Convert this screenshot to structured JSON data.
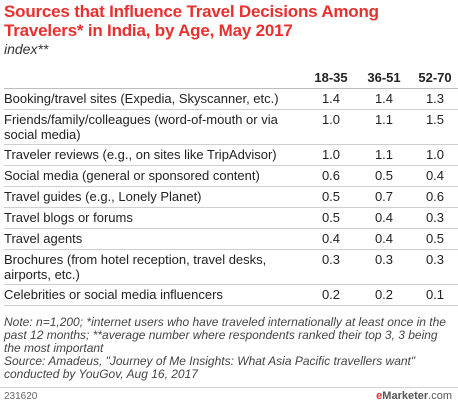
{
  "header": {
    "title": "Sources that Influence Travel Decisions Among Travelers* in India, by Age, May 2017",
    "subtitle": "index**"
  },
  "chart_data": {
    "type": "table",
    "columns": [
      "18-35",
      "36-51",
      "52-70"
    ],
    "rows": [
      {
        "label": "Booking/travel sites (Expedia, Skyscanner, etc.)",
        "values": [
          "1.4",
          "1.4",
          "1.3"
        ]
      },
      {
        "label": "Friends/family/colleagues (word-of-mouth or via social media)",
        "values": [
          "1.0",
          "1.1",
          "1.5"
        ]
      },
      {
        "label": "Traveler reviews (e.g., on sites like TripAdvisor)",
        "values": [
          "1.0",
          "1.1",
          "1.0"
        ]
      },
      {
        "label": "Social media (general or sponsored content)",
        "values": [
          "0.6",
          "0.5",
          "0.4"
        ]
      },
      {
        "label": "Travel guides (e.g., Lonely Planet)",
        "values": [
          "0.5",
          "0.7",
          "0.6"
        ]
      },
      {
        "label": "Travel blogs or forums",
        "values": [
          "0.5",
          "0.4",
          "0.3"
        ]
      },
      {
        "label": "Travel agents",
        "values": [
          "0.4",
          "0.4",
          "0.5"
        ]
      },
      {
        "label": "Brochures (from hotel reception, travel desks, airports, etc.)",
        "values": [
          "0.3",
          "0.3",
          "0.3"
        ]
      },
      {
        "label": "Celebrities or social media influencers",
        "values": [
          "0.2",
          "0.2",
          "0.1"
        ]
      }
    ]
  },
  "notes": {
    "note": "Note: n=1,200; *internet users who have traveled internationally at least once in the past 12 months; **average number where respondents ranked their top 3, 3 being the most important",
    "source": "Source: Amadeus, \"Journey of Me Insights: What Asia Pacific travellers want\" conducted by YouGov, Aug 16, 2017"
  },
  "footer": {
    "chart_id": "231620",
    "brand_e": "e",
    "brand_marketer": "Marketer",
    "brand_com": ".com"
  },
  "colors": {
    "title": "#e8312f",
    "text": "#222222"
  }
}
